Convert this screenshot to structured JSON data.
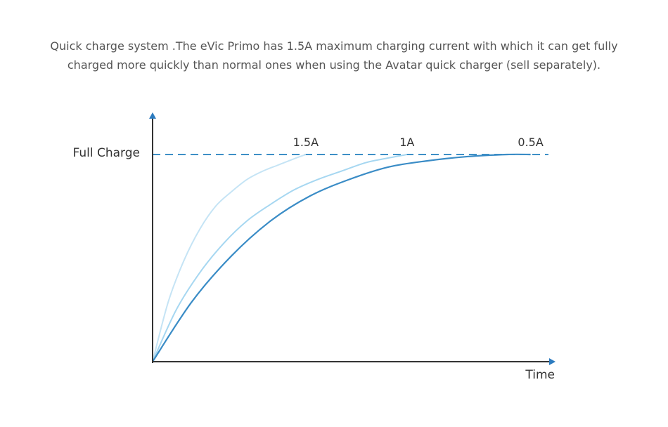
{
  "caption": {
    "line1": "Quick charge system .The eVic Primo has 1.5A maximum charging current with which it can get fully",
    "line2": "charged more quickly than normal ones when using the Avatar quick charger (sell separately)."
  },
  "chart_data": {
    "type": "line",
    "xlabel": "Time",
    "ylabel": "Full Charge",
    "grid": false,
    "reference_line": {
      "label": "Full Charge",
      "value": 1.0,
      "style": "dashed",
      "color": "#3d8fc6"
    },
    "xlim": [
      0,
      1
    ],
    "ylim": [
      0,
      1
    ],
    "series": [
      {
        "name": "1.5A",
        "color": "#c5e4f5",
        "x": [
          0,
          0.04,
          0.08,
          0.12,
          0.16,
          0.2,
          0.24,
          0.28,
          0.32,
          0.36,
          0.389
        ],
        "y": [
          0,
          0.29,
          0.49,
          0.64,
          0.75,
          0.82,
          0.88,
          0.92,
          0.95,
          0.98,
          1.0
        ]
      },
      {
        "name": "1A",
        "color": "#a6d7f1",
        "x": [
          0,
          0.06,
          0.12,
          0.18,
          0.24,
          0.3,
          0.36,
          0.42,
          0.48,
          0.54,
          0.59,
          0.646
        ],
        "y": [
          0,
          0.25,
          0.43,
          0.57,
          0.68,
          0.76,
          0.83,
          0.88,
          0.92,
          0.96,
          0.98,
          1.0
        ]
      },
      {
        "name": "0.5A",
        "color": "#3a8cc6",
        "x": [
          0,
          0.1,
          0.2,
          0.3,
          0.4,
          0.5,
          0.6,
          0.7,
          0.8,
          0.9,
          0.96
        ],
        "y": [
          0,
          0.29,
          0.51,
          0.68,
          0.8,
          0.88,
          0.94,
          0.97,
          0.99,
          1.0,
          1.0
        ]
      }
    ]
  },
  "colors": {
    "axis": "#333333",
    "axis_arrow": "#2c7bbf",
    "caption_text": "#555555"
  }
}
